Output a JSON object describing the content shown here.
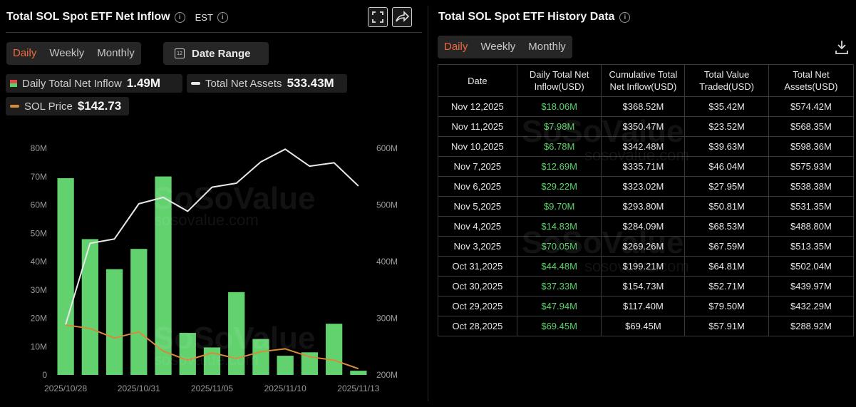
{
  "left": {
    "title": "Total SOL Spot ETF Net Inflow",
    "timezone": "EST",
    "tabs": [
      {
        "label": "Daily",
        "active": true
      },
      {
        "label": "Weekly",
        "active": false
      },
      {
        "label": "Monthly",
        "active": false
      }
    ],
    "date_range_label": "Date Range",
    "calendar_icon_text": "12",
    "legend": {
      "daily_label": "Daily Total Net Inflow",
      "daily_value": "1.49M",
      "assets_label": "Total Net Assets",
      "assets_value": "533.43M",
      "price_label": "SOL Price",
      "price_value": "$142.73"
    }
  },
  "right": {
    "title": "Total SOL Spot ETF History Data",
    "tabs": [
      {
        "label": "Daily",
        "active": true
      },
      {
        "label": "Weekly",
        "active": false
      },
      {
        "label": "Monthly",
        "active": false
      }
    ],
    "columns": [
      "Date",
      "Daily Total Net Inflow(USD)",
      "Cumulative Total Net Inflow(USD)",
      "Total Value Traded(USD)",
      "Total Net Assets(USD)"
    ],
    "rows": [
      [
        "Nov 12,2025",
        "$18.06M",
        "$368.52M",
        "$35.42M",
        "$574.42M"
      ],
      [
        "Nov 11,2025",
        "$7.98M",
        "$350.47M",
        "$23.52M",
        "$568.35M"
      ],
      [
        "Nov 10,2025",
        "$6.78M",
        "$342.48M",
        "$39.63M",
        "$598.36M"
      ],
      [
        "Nov 7,2025",
        "$12.69M",
        "$335.71M",
        "$46.04M",
        "$575.93M"
      ],
      [
        "Nov 6,2025",
        "$29.22M",
        "$323.02M",
        "$27.95M",
        "$538.38M"
      ],
      [
        "Nov 5,2025",
        "$9.70M",
        "$293.80M",
        "$50.81M",
        "$531.35M"
      ],
      [
        "Nov 4,2025",
        "$14.83M",
        "$284.09M",
        "$68.53M",
        "$488.80M"
      ],
      [
        "Nov 3,2025",
        "$70.05M",
        "$269.26M",
        "$67.59M",
        "$513.35M"
      ],
      [
        "Oct 31,2025",
        "$44.48M",
        "$199.21M",
        "$64.81M",
        "$502.04M"
      ],
      [
        "Oct 30,2025",
        "$37.33M",
        "$154.73M",
        "$52.71M",
        "$439.97M"
      ],
      [
        "Oct 29,2025",
        "$47.94M",
        "$117.40M",
        "$79.50M",
        "$432.29M"
      ],
      [
        "Oct 28,2025",
        "$69.45M",
        "$69.45M",
        "$57.91M",
        "$288.92M"
      ]
    ]
  },
  "watermark": {
    "brand": "SoSoValue",
    "site": "sosovalue.com"
  },
  "colors": {
    "bar": "#62d26f",
    "assets_line": "#e8e8e8",
    "price_line": "#d9893a",
    "active_tab": "#f0693e",
    "positive": "#5ad26a"
  },
  "chart_data": {
    "type": "bar",
    "x": [
      "2025/10/28",
      "2025/10/29",
      "2025/10/30",
      "2025/10/31",
      "2025/11/03",
      "2025/11/04",
      "2025/11/05",
      "2025/11/06",
      "2025/11/07",
      "2025/11/10",
      "2025/11/11",
      "2025/11/12",
      "2025/11/13"
    ],
    "x_tick_labels": [
      "2025/10/28",
      "2025/10/31",
      "2025/11/05",
      "2025/11/10",
      "2025/11/13"
    ],
    "y_left_ticks": [
      "0",
      "10M",
      "20M",
      "30M",
      "40M",
      "50M",
      "60M",
      "70M",
      "80M"
    ],
    "y_left_range": [
      0,
      80
    ],
    "y_right_ticks": [
      "200M",
      "300M",
      "400M",
      "500M",
      "600M"
    ],
    "y_right_range": [
      200,
      600
    ],
    "series": [
      {
        "name": "Daily Total Net Inflow",
        "axis": "left",
        "values": [
          69.45,
          47.94,
          37.33,
          44.48,
          70.05,
          14.83,
          9.7,
          29.22,
          12.69,
          6.78,
          7.98,
          18.06,
          1.49
        ]
      },
      {
        "name": "Total Net Assets",
        "axis": "right",
        "values": [
          288.92,
          432.29,
          439.97,
          502.04,
          513.35,
          488.8,
          531.35,
          538.38,
          575.93,
          598.36,
          568.35,
          574.42,
          533.43
        ]
      },
      {
        "name": "SOL Price",
        "axis": "right",
        "values": [
          288,
          282,
          265,
          276,
          242,
          226,
          239,
          229,
          241,
          246,
          232,
          226,
          211
        ]
      }
    ]
  }
}
